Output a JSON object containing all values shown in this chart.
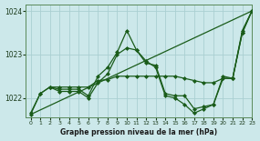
{
  "title": "Graphe pression niveau de la mer (hPa)",
  "bg_color": "#cce8ea",
  "grid_color": "#aacfd2",
  "line_color": "#1a5c1a",
  "xlim": [
    -0.5,
    23
  ],
  "ylim": [
    1021.55,
    1024.15
  ],
  "yticks": [
    1022,
    1023,
    1024
  ],
  "xticks": [
    0,
    1,
    2,
    3,
    4,
    5,
    6,
    7,
    8,
    9,
    10,
    11,
    12,
    13,
    14,
    15,
    16,
    17,
    18,
    19,
    20,
    21,
    22,
    23
  ],
  "series": [
    {
      "x": [
        0,
        1,
        2,
        3,
        4,
        5,
        6,
        7,
        8,
        9,
        10,
        11,
        12,
        13,
        14,
        15,
        16,
        17,
        18,
        19,
        20,
        21,
        22,
        23
      ],
      "y": [
        1021.62,
        1022.1,
        1022.25,
        1022.15,
        1022.15,
        1022.15,
        1022.0,
        1022.35,
        1022.55,
        1023.0,
        1023.15,
        1023.1,
        1022.8,
        1022.75,
        1022.1,
        1022.05,
        1022.05,
        1021.75,
        1021.8,
        1021.85,
        1022.5,
        1022.45,
        1023.55,
        1024.0
      ],
      "marker": "D",
      "ms": 2.0,
      "lw": 0.9
    },
    {
      "x": [
        0,
        1,
        2,
        3,
        4,
        5,
        6,
        7,
        8,
        9,
        10,
        11,
        12,
        13,
        14,
        15,
        16,
        17,
        18,
        19,
        20,
        21,
        22,
        23
      ],
      "y": [
        1021.65,
        1022.1,
        1022.25,
        1022.2,
        1022.2,
        1022.2,
        1022.05,
        1022.5,
        1022.7,
        1023.05,
        1023.55,
        1023.1,
        1022.85,
        1022.7,
        1022.05,
        1022.0,
        1021.85,
        1021.65,
        1021.75,
        1021.85,
        1022.45,
        1022.45,
        1023.5,
        1024.0
      ],
      "marker": "D",
      "ms": 2.0,
      "lw": 0.9
    },
    {
      "x": [
        2,
        3,
        4,
        5,
        6,
        7,
        8,
        9,
        10,
        11,
        12,
        13,
        14,
        15,
        16,
        17,
        18,
        19,
        20,
        21,
        22,
        23
      ],
      "y": [
        1022.25,
        1022.25,
        1022.25,
        1022.25,
        1022.25,
        1022.4,
        1022.42,
        1022.5,
        1022.5,
        1022.5,
        1022.5,
        1022.5,
        1022.5,
        1022.5,
        1022.45,
        1022.4,
        1022.35,
        1022.35,
        1022.45,
        1022.45,
        1023.5,
        1024.0
      ],
      "marker": "D",
      "ms": 2.0,
      "lw": 0.9
    },
    {
      "x": [
        0,
        23
      ],
      "y": [
        1021.62,
        1024.0
      ],
      "marker": null,
      "ms": 0,
      "lw": 0.9
    }
  ]
}
